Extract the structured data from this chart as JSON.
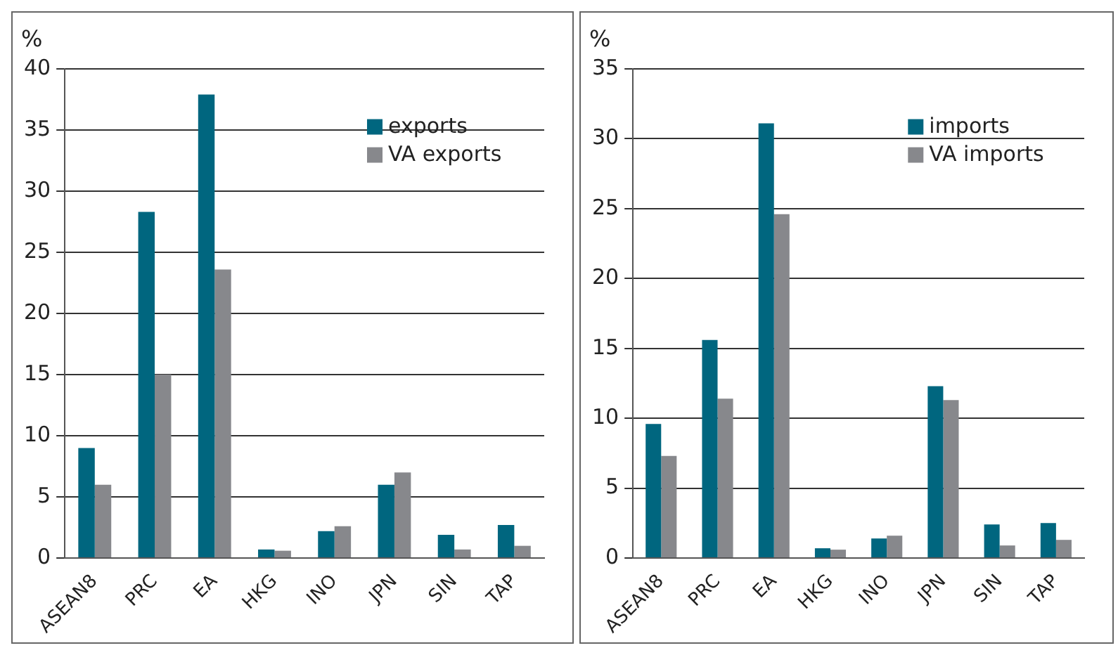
{
  "chart_data": [
    {
      "type": "bar",
      "ylabel": "%",
      "categories": [
        "ASEAN8",
        "PRC",
        "EA",
        "HKG",
        "INO",
        "JPN",
        "SIN",
        "TAP"
      ],
      "series": [
        {
          "name": "exports",
          "color": "#00667f",
          "values": [
            9.0,
            28.3,
            37.9,
            0.7,
            2.2,
            6.0,
            1.9,
            2.7
          ]
        },
        {
          "name": "VA exports",
          "color": "#87888c",
          "values": [
            6.0,
            15.0,
            23.6,
            0.6,
            2.6,
            7.0,
            0.7,
            1.0
          ]
        }
      ],
      "ylim": [
        0,
        40
      ],
      "yticks": [
        0,
        5,
        10,
        15,
        20,
        25,
        30,
        35,
        40
      ],
      "grid": "y",
      "legend": "top right"
    },
    {
      "type": "bar",
      "ylabel": "%",
      "categories": [
        "ASEAN8",
        "PRC",
        "EA",
        "HKG",
        "INO",
        "JPN",
        "SIN",
        "TAP"
      ],
      "series": [
        {
          "name": "imports",
          "color": "#00667f",
          "values": [
            9.6,
            15.6,
            31.1,
            0.7,
            1.4,
            12.3,
            2.4,
            2.5
          ]
        },
        {
          "name": "VA imports",
          "color": "#87888c",
          "values": [
            7.3,
            11.4,
            24.6,
            0.6,
            1.6,
            11.3,
            0.9,
            1.3
          ]
        }
      ],
      "ylim": [
        0,
        35
      ],
      "yticks": [
        0,
        5,
        10,
        15,
        20,
        25,
        30,
        35
      ],
      "grid": "y",
      "legend": "top right"
    }
  ]
}
